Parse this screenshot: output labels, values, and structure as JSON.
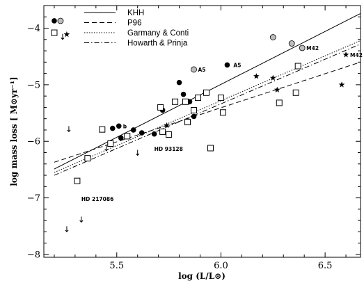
{
  "chart_data": {
    "type": "scatter",
    "xlabel": "log (L/L⊙)",
    "ylabel": "log mass loss [ M⊙yr⁻¹]",
    "xlim": [
      5.15,
      6.67
    ],
    "ylim": [
      -8.05,
      -3.6
    ],
    "x_ticks": [
      5.5,
      6.0,
      6.5
    ],
    "y_ticks": [
      -4,
      -5,
      -6,
      -7,
      -8
    ],
    "x_tick_labels": [
      "5.5",
      "6.0",
      "6.5"
    ],
    "y_tick_labels": [
      "−4",
      "−5",
      "−6",
      "−7",
      "−8"
    ],
    "grid": false,
    "legend_position": "top-center",
    "lines": [
      {
        "name": "KHH",
        "style": "solid",
        "x": [
          5.2,
          6.67
        ],
        "y": [
          -6.49,
          -3.74
        ]
      },
      {
        "name": "P96",
        "style": "dashed",
        "x": [
          5.2,
          6.67
        ],
        "y": [
          -6.37,
          -4.6
        ]
      },
      {
        "name": "Garmany & Conti",
        "style": "dotted",
        "x": [
          5.2,
          6.67
        ],
        "y": [
          -6.55,
          -4.22
        ]
      },
      {
        "name": "Howarth & Prinja",
        "style": "dashdot",
        "x": [
          5.2,
          6.67
        ],
        "y": [
          -6.6,
          -4.28
        ]
      }
    ],
    "series": [
      {
        "marker": "filled-circle",
        "x": [
          5.2,
          5.43,
          5.48,
          5.51,
          5.52,
          5.58,
          5.62,
          5.68,
          5.72,
          5.8,
          5.82,
          5.85,
          5.87,
          6.03
        ],
        "y": [
          -3.87,
          -5.79,
          -5.77,
          -5.73,
          -5.94,
          -5.8,
          -5.85,
          -5.87,
          -5.45,
          -4.96,
          -5.17,
          -5.3,
          -5.56,
          -4.65
        ]
      },
      {
        "marker": "gray-circle",
        "x": [
          5.23,
          5.87,
          6.25,
          6.34,
          6.39
        ],
        "y": [
          -3.87,
          -4.73,
          -4.16,
          -4.27,
          -4.35
        ]
      },
      {
        "marker": "open-square",
        "x": [
          5.2,
          5.31,
          5.36,
          5.43,
          5.47,
          5.55,
          5.71,
          5.72,
          5.75,
          5.78,
          5.83,
          5.84,
          5.87,
          5.89,
          5.93,
          5.95,
          6.0,
          6.01,
          6.28,
          6.36,
          6.37
        ],
        "y": [
          -4.08,
          -6.7,
          -6.3,
          -5.79,
          -6.04,
          -5.91,
          -5.4,
          -5.83,
          -5.88,
          -5.3,
          -5.3,
          -5.66,
          -5.45,
          -5.23,
          -5.14,
          -6.12,
          -5.23,
          -5.49,
          -5.32,
          -5.14,
          -4.67
        ]
      },
      {
        "marker": "star",
        "x": [
          5.26,
          5.74,
          6.17,
          6.25,
          6.27,
          6.58,
          6.6
        ],
        "y": [
          -4.11,
          -5.72,
          -4.85,
          -4.88,
          -5.09,
          -5.0,
          -4.47
        ]
      },
      {
        "marker": "upper-limit-arrow",
        "x": [
          5.24,
          5.27,
          5.45,
          5.6,
          5.33,
          5.26
        ],
        "y": [
          -4.15,
          -5.78,
          -6.12,
          -6.2,
          -7.38,
          -7.55
        ]
      }
    ],
    "annotations": [
      {
        "text": "b",
        "x": 5.53,
        "y": -5.73
      },
      {
        "text": "A5",
        "x": 5.89,
        "y": -4.73
      },
      {
        "text": "A5",
        "x": 6.06,
        "y": -4.65
      },
      {
        "text": "M42",
        "x": 6.41,
        "y": -4.35
      },
      {
        "text": "M42",
        "x": 6.62,
        "y": -4.47
      },
      {
        "text": "HD 93128",
        "x": 5.68,
        "y": -6.13
      },
      {
        "text": "HD 217086",
        "x": 5.33,
        "y": -7.02
      }
    ]
  }
}
